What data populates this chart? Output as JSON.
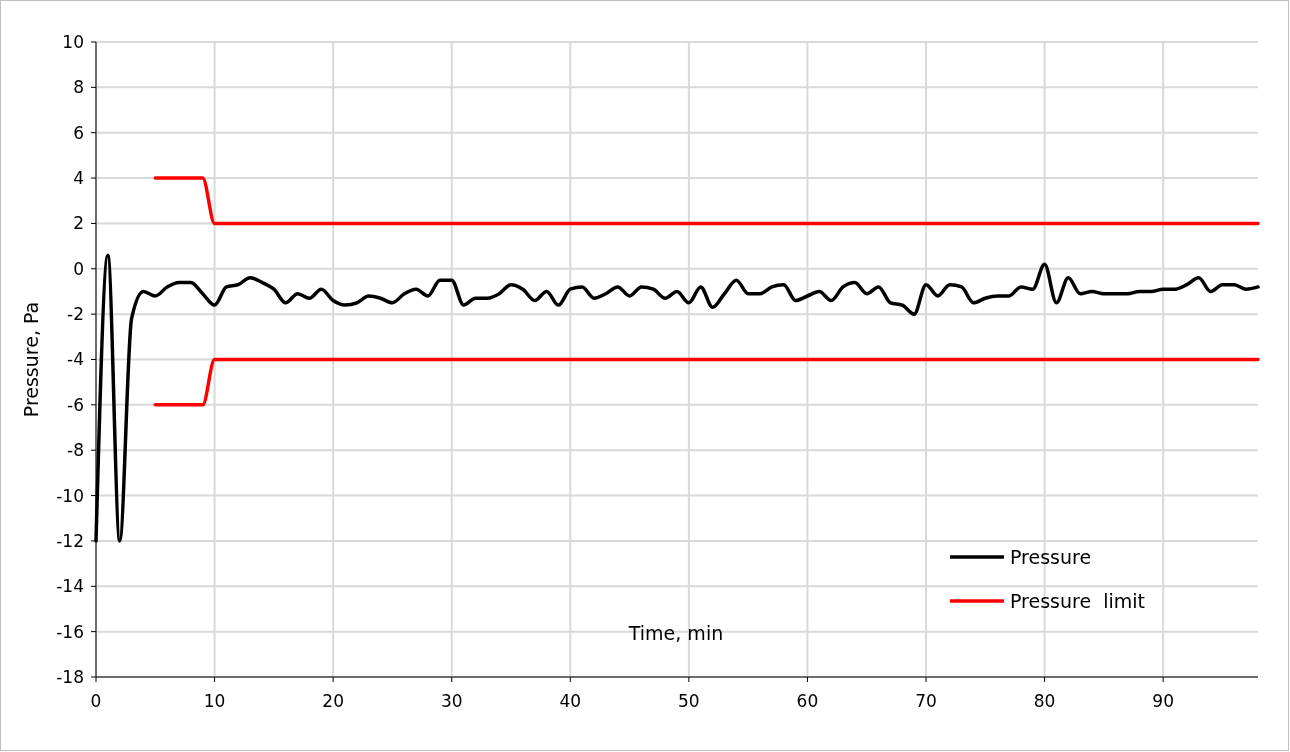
{
  "chart_data": {
    "type": "line",
    "xlabel": "Time, min",
    "ylabel": "Pressure, Pa",
    "xlim": [
      0,
      98
    ],
    "xticks": [
      0,
      10,
      20,
      30,
      40,
      50,
      60,
      70,
      80,
      90
    ],
    "ylim": [
      -18,
      10
    ],
    "yticks": [
      -18,
      -16,
      -14,
      -12,
      -10,
      -8,
      -6,
      -4,
      -2,
      0,
      2,
      4,
      6,
      8,
      10
    ],
    "grid": true,
    "legend": "bottom right",
    "marker": "none",
    "line_style": "solid",
    "series": [
      {
        "name": "Pressure",
        "color": "#000000",
        "x": [
          0,
          1,
          2,
          3,
          4,
          5,
          6,
          7,
          8,
          9,
          10,
          11,
          12,
          13,
          14,
          15,
          16,
          17,
          18,
          19,
          20,
          21,
          22,
          23,
          24,
          25,
          26,
          27,
          28,
          29,
          30,
          31,
          32,
          33,
          34,
          35,
          36,
          37,
          38,
          39,
          40,
          41,
          42,
          43,
          44,
          45,
          46,
          47,
          48,
          49,
          50,
          51,
          52,
          53,
          54,
          55,
          56,
          57,
          58,
          59,
          60,
          61,
          62,
          63,
          64,
          65,
          66,
          67,
          68,
          69,
          70,
          71,
          72,
          73,
          74,
          75,
          76,
          77,
          78,
          79,
          80,
          81,
          82,
          83,
          84,
          85,
          86,
          87,
          88,
          89,
          90,
          91,
          92,
          93,
          94,
          95,
          96,
          97,
          98
        ],
        "values": [
          -12,
          0.6,
          -12,
          -2.2,
          -1,
          -1.2,
          -0.8,
          -0.6,
          -0.6,
          -1.1,
          -1.6,
          -0.8,
          -0.7,
          -0.4,
          -0.6,
          -0.9,
          -1.5,
          -1.1,
          -1.3,
          -0.9,
          -1.4,
          -1.6,
          -1.5,
          -1.2,
          -1.3,
          -1.5,
          -1.1,
          -0.9,
          -1.2,
          -0.5,
          -0.5,
          -1.6,
          -1.3,
          -1.3,
          -1.1,
          -0.7,
          -0.9,
          -1.4,
          -1.0,
          -1.6,
          -0.9,
          -0.8,
          -1.3,
          -1.1,
          -0.8,
          -1.2,
          -0.8,
          -0.9,
          -1.3,
          -1.0,
          -1.5,
          -0.8,
          -1.7,
          -1.1,
          -0.5,
          -1.1,
          -1.1,
          -0.8,
          -0.7,
          -1.4,
          -1.2,
          -1.0,
          -1.4,
          -0.8,
          -0.6,
          -1.1,
          -0.8,
          -1.5,
          -1.6,
          -2.0,
          -0.7,
          -1.2,
          -0.7,
          -0.8,
          -1.5,
          -1.3,
          -1.2,
          -1.2,
          -0.8,
          -0.9,
          0.2,
          -1.5,
          -0.4,
          -1.1,
          -1.0,
          -1.1,
          -1.1,
          -1.1,
          -1.0,
          -1.0,
          -0.9,
          -0.9,
          -0.7,
          -0.4,
          -1.0,
          -0.7,
          -0.7,
          -0.9,
          -0.8
        ]
      },
      {
        "name": "Pressure  limit",
        "color": "#ff0000",
        "x": [
          5,
          9,
          10,
          98
        ],
        "values": [
          4,
          4,
          2,
          2
        ]
      },
      {
        "color": "#ff0000",
        "x": [
          5,
          9,
          10,
          98
        ],
        "values": [
          -6,
          -6,
          -4,
          -4
        ]
      }
    ]
  }
}
